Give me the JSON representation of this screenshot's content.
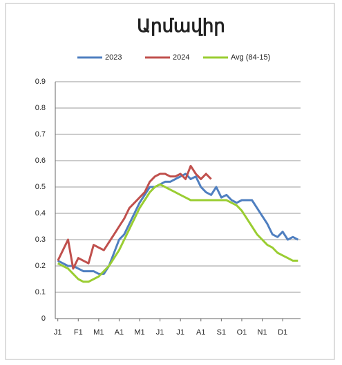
{
  "chart_data": {
    "type": "line",
    "title": "Արմավիր",
    "categories": [
      "J1",
      null,
      null,
      null,
      "F1",
      null,
      null,
      null,
      "M1",
      null,
      null,
      null,
      "A1",
      null,
      null,
      null,
      "M1",
      null,
      null,
      null,
      "J1",
      null,
      null,
      null,
      "J1",
      null,
      null,
      null,
      "A1",
      null,
      null,
      null,
      "S1",
      null,
      null,
      null,
      "O1",
      null,
      null,
      null,
      "N1",
      null,
      null,
      null,
      "D1",
      null,
      null,
      null
    ],
    "series": [
      {
        "name": "2023",
        "color": "#4f7fc0",
        "values": [
          0.22,
          0.21,
          0.2,
          0.2,
          0.19,
          0.18,
          0.18,
          0.18,
          0.17,
          0.17,
          0.2,
          0.25,
          0.3,
          0.32,
          0.36,
          0.4,
          0.44,
          0.47,
          0.5,
          0.5,
          0.51,
          0.52,
          0.52,
          0.53,
          0.54,
          0.55,
          0.53,
          0.54,
          0.5,
          0.48,
          0.47,
          0.5,
          0.46,
          0.47,
          0.45,
          0.44,
          0.45,
          0.45,
          0.45,
          0.42,
          0.39,
          0.36,
          0.32,
          0.31,
          0.33,
          0.3,
          0.31,
          0.3
        ]
      },
      {
        "name": "2024",
        "color": "#c0504d",
        "values": [
          0.22,
          0.26,
          0.3,
          0.19,
          0.23,
          0.22,
          0.21,
          0.28,
          0.27,
          0.26,
          0.29,
          0.32,
          0.35,
          0.38,
          0.42,
          0.44,
          0.46,
          0.48,
          0.52,
          0.54,
          0.55,
          0.55,
          0.54,
          0.54,
          0.55,
          0.53,
          0.58,
          0.55,
          0.53,
          0.55,
          0.53,
          null,
          null,
          null,
          null,
          null,
          null,
          null,
          null,
          null,
          null,
          null,
          null,
          null,
          null,
          null,
          null,
          null
        ]
      },
      {
        "name": "Avg (84-15)",
        "color": "#9acd32",
        "values": [
          0.21,
          0.2,
          0.19,
          0.17,
          0.15,
          0.14,
          0.14,
          0.15,
          0.16,
          0.18,
          0.2,
          0.23,
          0.26,
          0.3,
          0.34,
          0.38,
          0.42,
          0.45,
          0.48,
          0.5,
          0.51,
          0.5,
          0.49,
          0.48,
          0.47,
          0.46,
          0.45,
          0.45,
          0.45,
          0.45,
          0.45,
          0.45,
          0.45,
          0.45,
          0.44,
          0.43,
          0.41,
          0.38,
          0.35,
          0.32,
          0.3,
          0.28,
          0.27,
          0.25,
          0.24,
          0.23,
          0.22,
          0.22
        ]
      }
    ],
    "ylim": [
      0,
      0.9
    ],
    "yticks": [
      0,
      0.1,
      0.2,
      0.3,
      0.4,
      0.5,
      0.6,
      0.7,
      0.8,
      0.9
    ],
    "grid": true,
    "legend": "top"
  }
}
